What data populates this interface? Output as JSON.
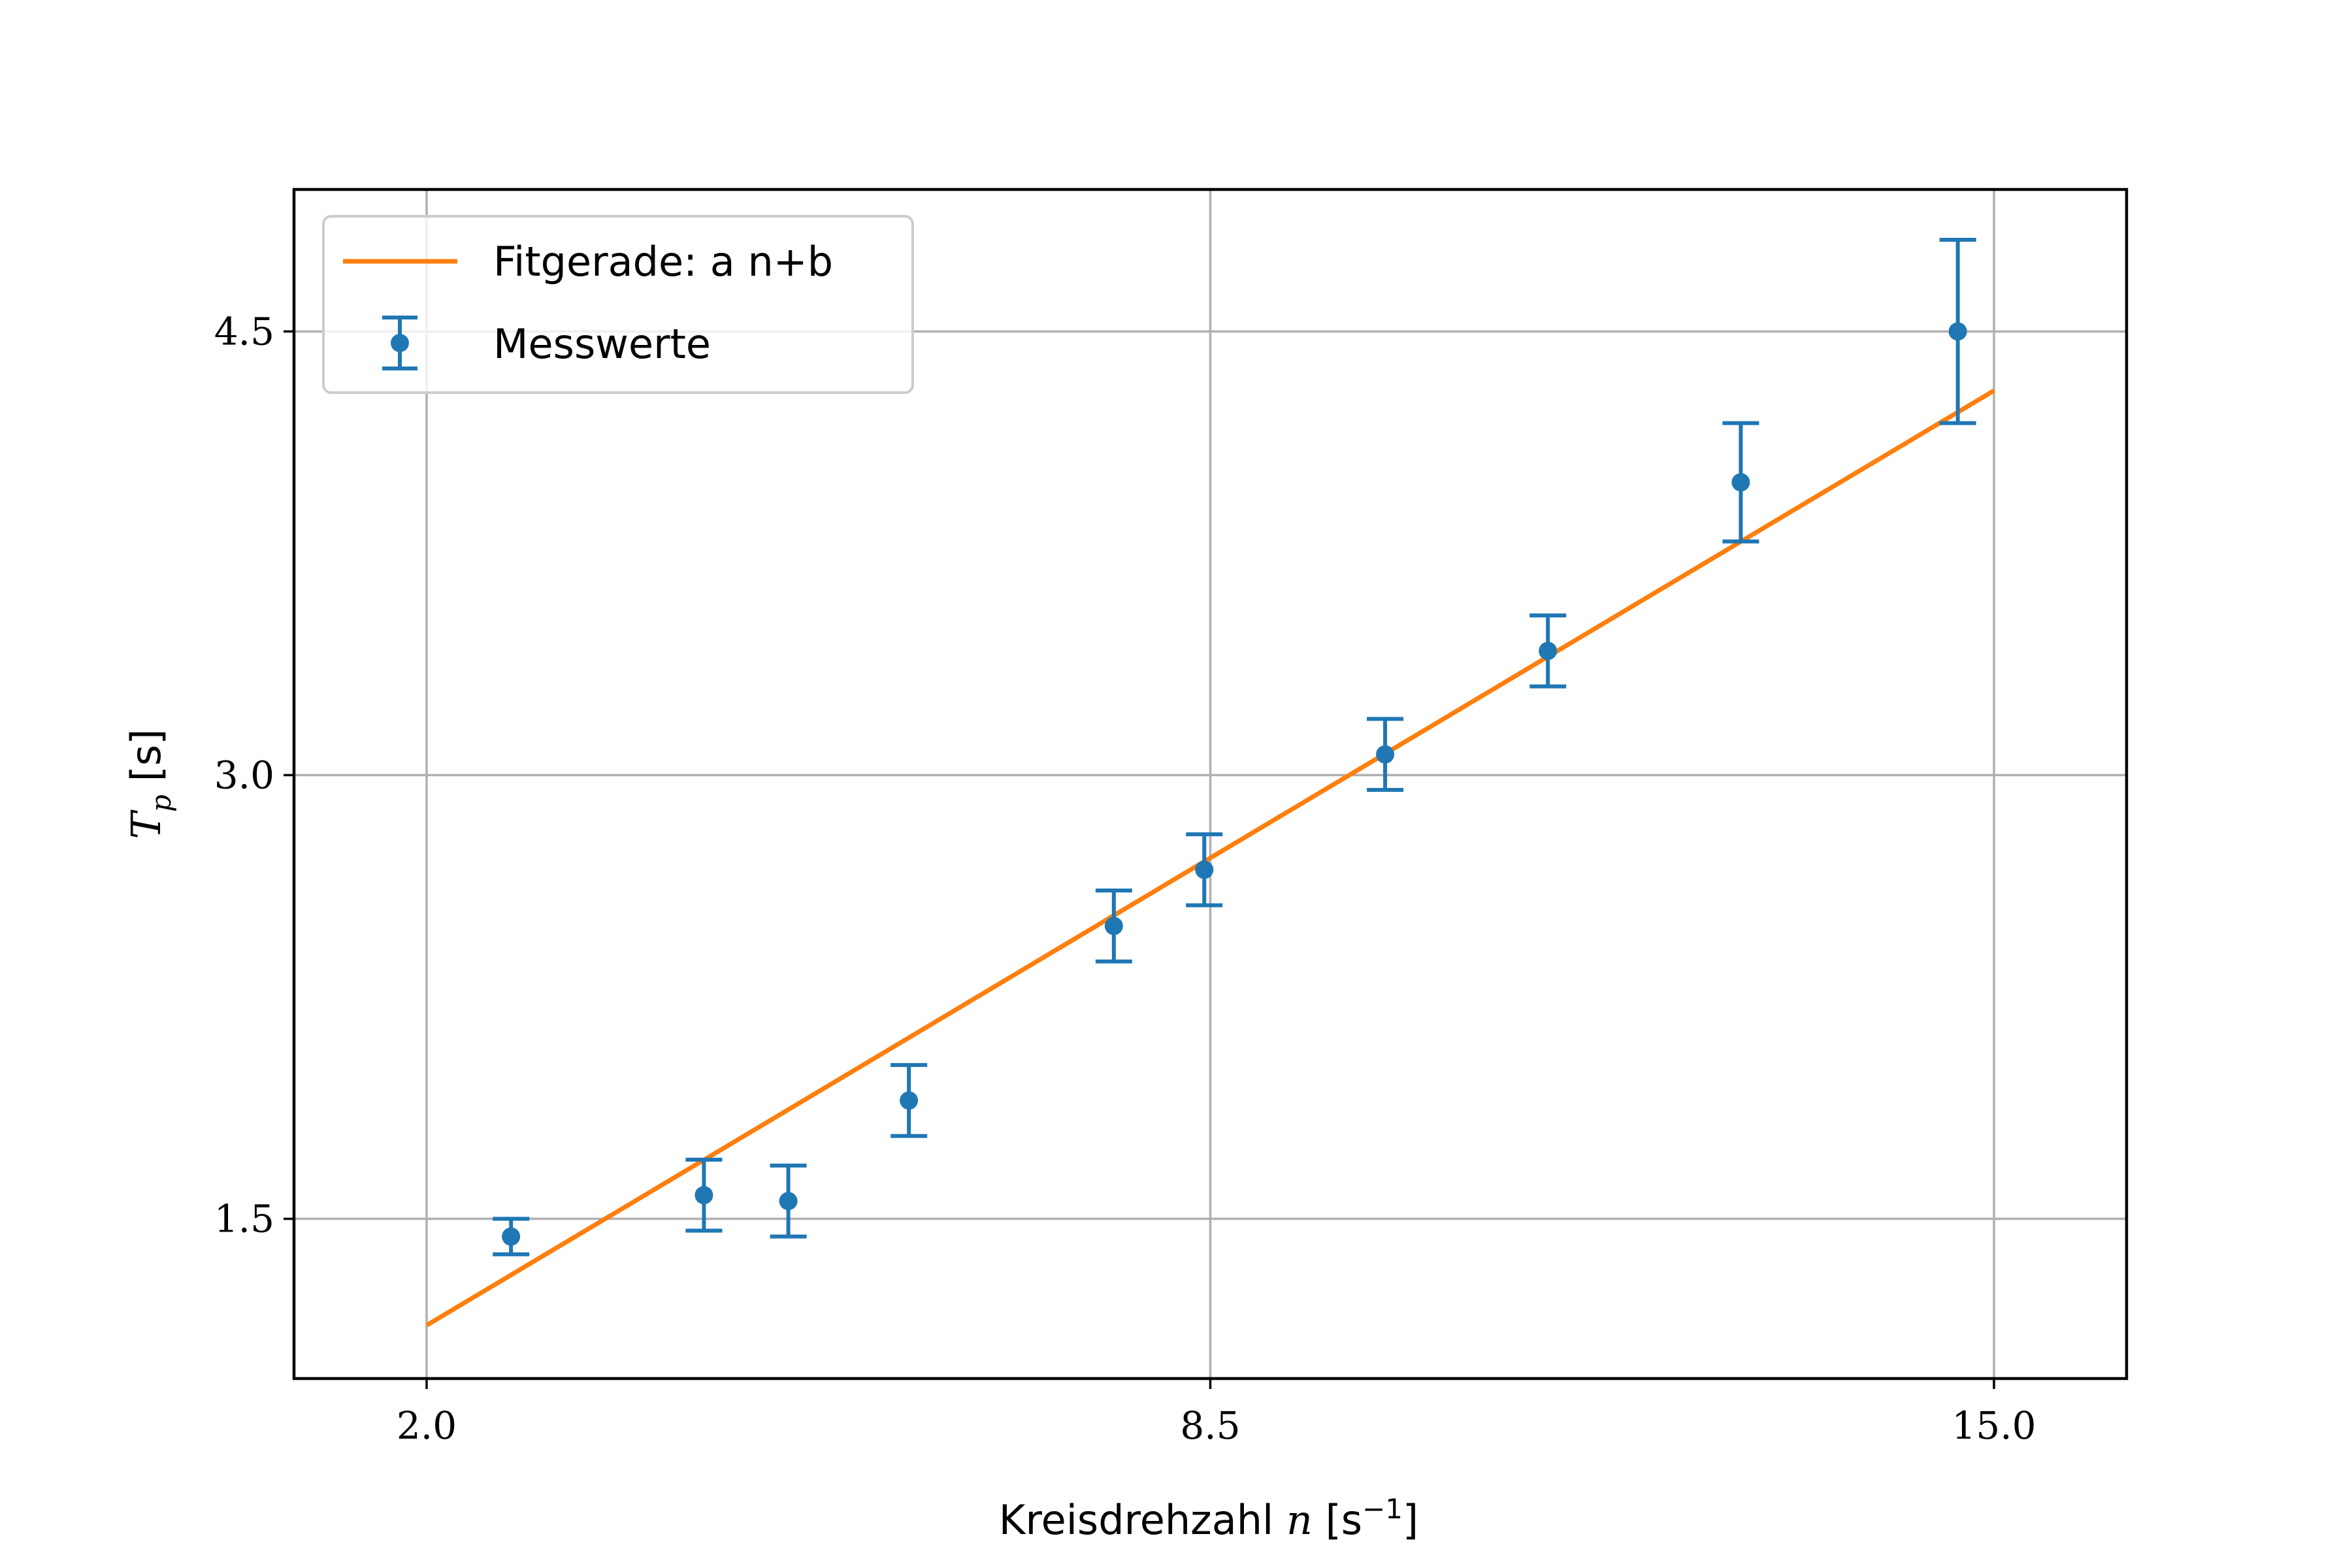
{
  "chart_data": {
    "type": "scatter",
    "xlabel": {
      "pre": "Kreisdrehzahl ",
      "var": "n",
      "unit_pre": " [s",
      "unit_exp": "−1",
      "unit_post": "]"
    },
    "ylabel": {
      "var": "T",
      "sub": "p",
      "unit": " [s]"
    },
    "xlim": [
      0.9,
      16.1
    ],
    "ylim": [
      0.96,
      4.98
    ],
    "xticks": [
      2.0,
      8.5,
      15.0
    ],
    "xtick_labels": [
      "2.0",
      "8.5",
      "15.0"
    ],
    "yticks": [
      1.5,
      3.0,
      4.5
    ],
    "ytick_labels": [
      "1.5",
      "3.0",
      "4.5"
    ],
    "grid": true,
    "legend_position": "top-left",
    "series": [
      {
        "name": "Fitgerade: a n+b",
        "kind": "line",
        "color": "#ff7f0e",
        "x": [
          2.0,
          15.0
        ],
        "y": [
          1.14,
          4.3
        ]
      },
      {
        "name": "Messwerte",
        "kind": "errorbar",
        "color": "#1f77b4",
        "x": [
          2.7,
          4.3,
          5.0,
          6.0,
          7.7,
          8.45,
          9.95,
          11.3,
          12.9,
          14.7
        ],
        "y": [
          1.44,
          1.58,
          1.56,
          1.9,
          2.49,
          2.68,
          3.07,
          3.42,
          3.99,
          4.5
        ],
        "yerr": [
          0.06,
          0.12,
          0.12,
          0.12,
          0.12,
          0.12,
          0.12,
          0.12,
          0.2,
          0.31
        ]
      }
    ]
  }
}
